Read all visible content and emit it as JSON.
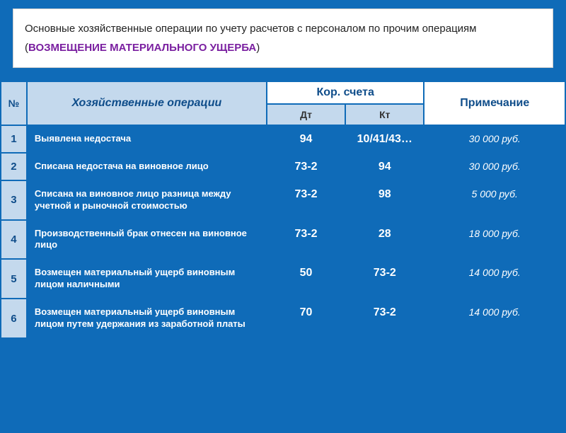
{
  "title": {
    "main": "Основные хозяйственные операции по учету расчетов с персоналом по прочим операциям (",
    "highlight": "ВОЗМЕЩЕНИЕ МАТЕРИАЛЬНОГО УЩЕРБА",
    "close": ")"
  },
  "headers": {
    "num": "№",
    "op": "Хозяйственные операции",
    "acc": "Кор. счета",
    "note": "Примечание",
    "dt": "Дт",
    "kt": "Кт"
  },
  "rows": [
    {
      "num": "1",
      "op": "Выявлена недостача",
      "dt": "94",
      "kt": "10/41/43…",
      "note": "30 000 руб."
    },
    {
      "num": "2",
      "op": "Списана недостача на виновное лицо",
      "dt": "73-2",
      "kt": "94",
      "note": "30 000 руб."
    },
    {
      "num": "3",
      "op": "Списана на виновное лицо разница между учетной и рыночной стоимостью",
      "dt": "73-2",
      "kt": "98",
      "note": "5 000 руб."
    },
    {
      "num": "4",
      "op": "Производственный брак отнесен на виновное лицо",
      "dt": "73-2",
      "kt": "28",
      "note": "18 000 руб."
    },
    {
      "num": "5",
      "op": "Возмещен материальный ущерб виновным лицом наличными",
      "dt": "50",
      "kt": "73-2",
      "note": "14 000 руб."
    },
    {
      "num": "6",
      "op": "Возмещен материальный ущерб виновным лицом путем удержания из заработной платы",
      "dt": "70",
      "kt": "73-2",
      "note": "14 000 руб."
    }
  ]
}
